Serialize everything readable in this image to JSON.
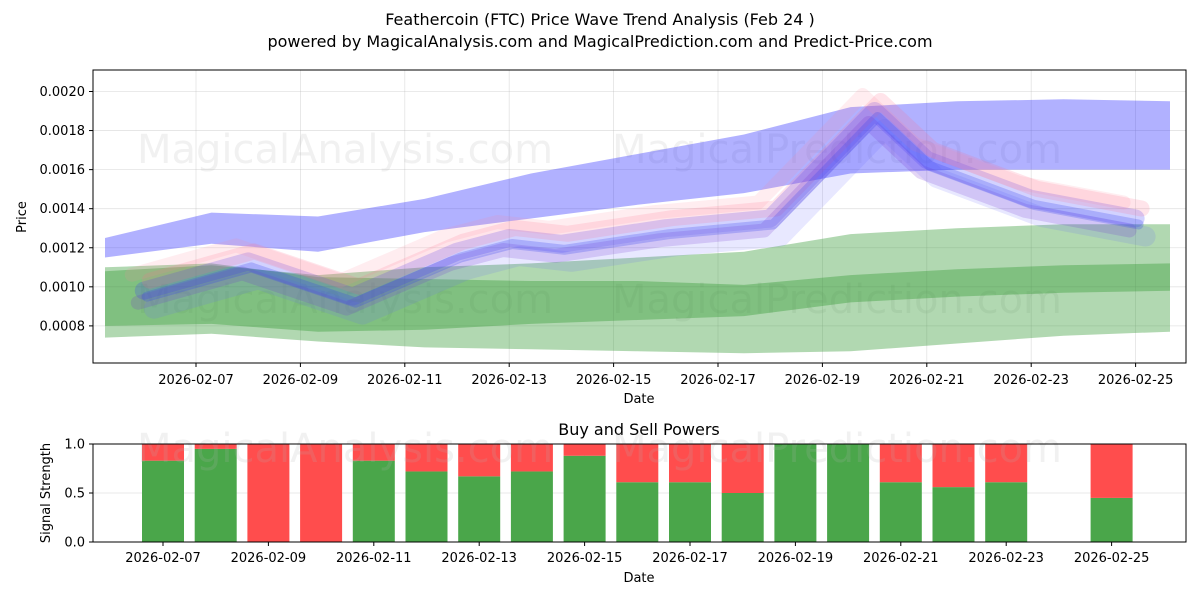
{
  "chart_data": [
    {
      "type": "area",
      "title": "Feathercoin (FTC) Price Wave Trend Analysis (Feb 24 )",
      "subtitle": "powered by MagicalAnalysis.com and MagicalPrediction.com and Predict-Price.com",
      "xlabel": "Date",
      "ylabel": "Price",
      "x_ticks": [
        "2026-02-07",
        "2026-02-09",
        "2026-02-11",
        "2026-02-13",
        "2026-02-15",
        "2026-02-17",
        "2026-02-19",
        "2026-02-21",
        "2026-02-23",
        "2026-02-25"
      ],
      "y_ticks": [
        "0.0008",
        "0.0010",
        "0.0012",
        "0.0014",
        "0.0016",
        "0.0018",
        "0.0020"
      ],
      "ylim": [
        0.00061,
        0.00211
      ],
      "grid": true,
      "watermarks": [
        "MagicalAnalysis.com",
        "MagicalPrediction.com"
      ],
      "x": [
        "2026-02-06",
        "2026-02-08",
        "2026-02-10",
        "2026-02-12",
        "2026-02-14",
        "2026-02-16",
        "2026-02-18",
        "2026-02-20",
        "2026-02-22",
        "2026-02-24",
        "2026-02-26"
      ],
      "series": [
        {
          "name": "blue upper band",
          "color": "#3333ff",
          "upper": [
            0.00125,
            0.00138,
            0.00136,
            0.00145,
            0.00158,
            0.00168,
            0.00178,
            0.00192,
            0.00195,
            0.00196,
            0.00195
          ],
          "lower": [
            0.00115,
            0.00122,
            0.00118,
            0.00128,
            0.00135,
            0.00142,
            0.00148,
            0.00158,
            0.0016,
            0.0016,
            0.0016
          ]
        },
        {
          "name": "green outer band",
          "color": "#339933",
          "upper": [
            0.00108,
            0.00111,
            0.00106,
            0.0011,
            0.00112,
            0.00115,
            0.00118,
            0.00127,
            0.0013,
            0.00132,
            0.00132
          ],
          "lower": [
            0.00074,
            0.00076,
            0.00072,
            0.00069,
            0.00068,
            0.00067,
            0.00066,
            0.00067,
            0.00071,
            0.00075,
            0.00077
          ]
        },
        {
          "name": "green inner band",
          "color": "#339933",
          "upper": [
            0.0011,
            0.00112,
            0.00105,
            0.00104,
            0.00103,
            0.00103,
            0.00101,
            0.00106,
            0.00109,
            0.00111,
            0.00112
          ],
          "lower": [
            0.0008,
            0.00081,
            0.00077,
            0.00078,
            0.00081,
            0.00083,
            0.00085,
            0.00092,
            0.00095,
            0.00097,
            0.00098
          ]
        }
      ],
      "price_path": {
        "x": [
          "2026-02-06",
          "2026-02-08",
          "2026-02-10",
          "2026-02-12",
          "2026-02-13",
          "2026-02-14",
          "2026-02-16",
          "2026-02-18",
          "2026-02-20",
          "2026-02-21",
          "2026-02-23",
          "2026-02-25"
        ],
        "values": [
          0.00098,
          0.00113,
          0.00095,
          0.00118,
          0.00125,
          0.00122,
          0.0013,
          0.00135,
          0.0019,
          0.00165,
          0.00145,
          0.00135
        ]
      }
    },
    {
      "type": "bar",
      "title": "Buy and Sell Powers",
      "xlabel": "Date",
      "ylabel": "Signal Strength",
      "ylim": [
        0,
        1
      ],
      "y_ticks": [
        "0.0",
        "0.5",
        "1.0"
      ],
      "x_ticks": [
        "2026-02-07",
        "2026-02-09",
        "2026-02-11",
        "2026-02-13",
        "2026-02-15",
        "2026-02-17",
        "2026-02-19",
        "2026-02-21",
        "2026-02-23",
        "2026-02-25"
      ],
      "categories": [
        "2026-02-07",
        "2026-02-08",
        "2026-02-09",
        "2026-02-10",
        "2026-02-11",
        "2026-02-12",
        "2026-02-13",
        "2026-02-14",
        "2026-02-15",
        "2026-02-16",
        "2026-02-17",
        "2026-02-18",
        "2026-02-19",
        "2026-02-20",
        "2026-02-21",
        "2026-02-22",
        "2026-02-23",
        "2026-02-25"
      ],
      "series": [
        {
          "name": "Buy",
          "color": "#4aa64a",
          "values": [
            0.83,
            0.95,
            0.0,
            0.0,
            0.83,
            0.72,
            0.67,
            0.72,
            0.88,
            0.61,
            0.61,
            0.5,
            1.0,
            1.0,
            0.61,
            0.56,
            0.61,
            0.45
          ]
        },
        {
          "name": "Sell",
          "color": "#ff4d4d",
          "values": [
            0.17,
            0.05,
            1.0,
            1.0,
            0.17,
            0.28,
            0.33,
            0.28,
            0.12,
            0.39,
            0.39,
            0.5,
            0.0,
            0.0,
            0.39,
            0.44,
            0.39,
            0.55
          ]
        }
      ]
    }
  ]
}
